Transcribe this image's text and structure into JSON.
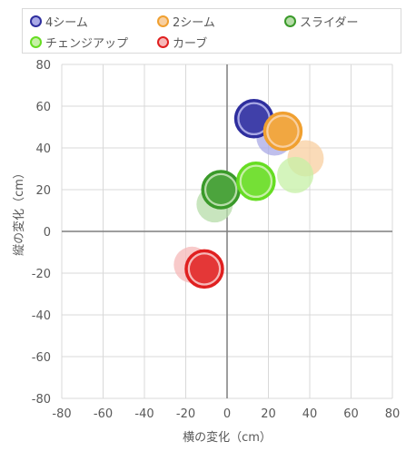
{
  "chart_data": {
    "type": "scatter",
    "subtype": "bubble",
    "title": "",
    "xlabel": "横の変化（cm）",
    "ylabel": "縦の変化（cm）",
    "xlim": [
      -80,
      80
    ],
    "ylim": [
      -80,
      80
    ],
    "x_ticks": [
      "-80",
      "-60",
      "-40",
      "-20",
      "0",
      "20",
      "40",
      "60",
      "80"
    ],
    "y_ticks": [
      "80",
      "60",
      "40",
      "20",
      "0",
      "-20",
      "-40",
      "-60",
      "-80"
    ],
    "grid": true,
    "legend_position": "top",
    "series": [
      {
        "name": "4シーム",
        "color": "#2e2e9e",
        "light_color": "#a9a9e6",
        "points": [
          {
            "x": 13,
            "y": 54,
            "style": "solid"
          },
          {
            "x": 23,
            "y": 45,
            "style": "faded"
          }
        ]
      },
      {
        "name": "2シーム",
        "color": "#f0a030",
        "light_color": "#f8cfa0",
        "points": [
          {
            "x": 27,
            "y": 48,
            "style": "solid"
          },
          {
            "x": 38,
            "y": 35,
            "style": "faded"
          }
        ]
      },
      {
        "name": "スライダー",
        "color": "#3a9a2a",
        "light_color": "#b6dca8",
        "points": [
          {
            "x": -3,
            "y": 20,
            "style": "solid"
          },
          {
            "x": -6,
            "y": 13,
            "style": "faded"
          }
        ]
      },
      {
        "name": "チェンジアップ",
        "color": "#66dd22",
        "light_color": "#c6f0a6",
        "points": [
          {
            "x": 14,
            "y": 24,
            "style": "solid"
          },
          {
            "x": 33,
            "y": 27,
            "style": "faded"
          }
        ]
      },
      {
        "name": "カーブ",
        "color": "#e02020",
        "light_color": "#f6b8b8",
        "points": [
          {
            "x": -11,
            "y": -18,
            "style": "solid"
          },
          {
            "x": -17,
            "y": -16,
            "style": "faded"
          }
        ]
      }
    ]
  }
}
